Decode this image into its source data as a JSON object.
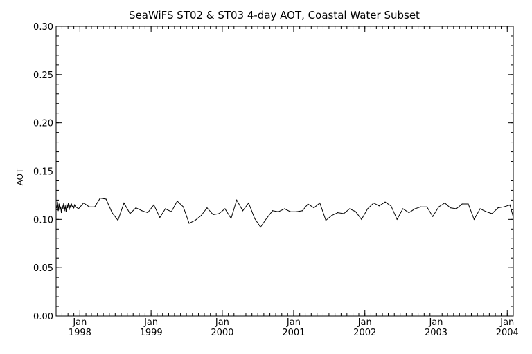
{
  "chart_data": {
    "type": "line",
    "title": "SeaWiFS ST02 & ST03 4-day AOT, Coastal Water Subset",
    "ylabel": "AOT",
    "xlabel": "",
    "ylim": [
      0.0,
      0.3
    ],
    "xlim": [
      "1997-09-01",
      "2004-02-01"
    ],
    "yticks": [
      "0.00",
      "0.05",
      "0.10",
      "0.15",
      "0.20",
      "0.25",
      "0.30"
    ],
    "xticks": [
      {
        "month": "Jan",
        "year": "1998",
        "date": "1998-01-01"
      },
      {
        "month": "Jan",
        "year": "1999",
        "date": "1999-01-01"
      },
      {
        "month": "Jan",
        "year": "2000",
        "date": "2000-01-01"
      },
      {
        "month": "Jan",
        "year": "2001",
        "date": "2001-01-01"
      },
      {
        "month": "Jan",
        "year": "2002",
        "date": "2002-01-01"
      },
      {
        "month": "Jan",
        "year": "2003",
        "date": "2003-01-01"
      },
      {
        "month": "Jan",
        "year": "2004",
        "date": "2004-01-01"
      }
    ],
    "grid": false,
    "series": [
      {
        "x": [
          "1997-09-04",
          "1997-09-08",
          "1997-09-12",
          "1997-09-16",
          "1997-09-20",
          "1997-09-24",
          "1997-09-28",
          "1997-10-02",
          "1997-10-06",
          "1997-10-10",
          "1997-10-14",
          "1997-10-18",
          "1997-10-22",
          "1997-10-26",
          "1997-10-30",
          "1997-11-03",
          "1997-11-07",
          "1997-11-11",
          "1997-11-15",
          "1997-11-19",
          "1997-11-23",
          "1997-11-27",
          "1997-12-01",
          "1997-12-05",
          "1997-12-10",
          "1997-12-25",
          "1998-01-20",
          "1998-02-18",
          "1998-03-18",
          "1998-04-15",
          "1998-05-15",
          "1998-06-15",
          "1998-07-15",
          "1998-08-15",
          "1998-09-15",
          "1998-10-15",
          "1998-11-15",
          "1998-12-15",
          "1999-01-15",
          "1999-02-15",
          "1999-03-15",
          "1999-04-15",
          "1999-05-15",
          "1999-06-15",
          "1999-07-15",
          "1999-08-15",
          "1999-09-15",
          "1999-10-15",
          "1999-11-15",
          "1999-12-15",
          "2000-01-15",
          "2000-02-15",
          "2000-03-15",
          "2000-04-15",
          "2000-05-15",
          "2000-06-15",
          "2000-07-15",
          "2000-08-15",
          "2000-09-15",
          "2000-10-15",
          "2000-11-15",
          "2000-12-15",
          "2001-01-15",
          "2001-02-15",
          "2001-03-15",
          "2001-04-15",
          "2001-05-15",
          "2001-06-15",
          "2001-07-15",
          "2001-08-15",
          "2001-09-15",
          "2001-10-15",
          "2001-11-15",
          "2001-12-15",
          "2002-01-15",
          "2002-02-15",
          "2002-03-15",
          "2002-04-15",
          "2002-05-15",
          "2002-06-15",
          "2002-07-15",
          "2002-08-15",
          "2002-09-15",
          "2002-10-15",
          "2002-11-15",
          "2002-12-15",
          "2003-01-15",
          "2003-02-15",
          "2003-03-15",
          "2003-04-15",
          "2003-05-15",
          "2003-06-15",
          "2003-07-15",
          "2003-08-15",
          "2003-09-15",
          "2003-10-15",
          "2003-11-15",
          "2003-12-15",
          "2004-01-15",
          "2004-01-31"
        ],
        "y": [
          0.112,
          0.118,
          0.109,
          0.116,
          0.11,
          0.113,
          0.107,
          0.115,
          0.111,
          0.117,
          0.109,
          0.114,
          0.108,
          0.116,
          0.112,
          0.117,
          0.11,
          0.115,
          0.112,
          0.116,
          0.113,
          0.114,
          0.112,
          0.115,
          0.113,
          0.111,
          0.117,
          0.113,
          0.113,
          0.122,
          0.121,
          0.107,
          0.099,
          0.117,
          0.106,
          0.112,
          0.109,
          0.107,
          0.115,
          0.102,
          0.111,
          0.108,
          0.119,
          0.113,
          0.096,
          0.099,
          0.104,
          0.112,
          0.105,
          0.106,
          0.111,
          0.101,
          0.12,
          0.109,
          0.117,
          0.101,
          0.092,
          0.101,
          0.109,
          0.108,
          0.111,
          0.108,
          0.108,
          0.109,
          0.116,
          0.112,
          0.117,
          0.099,
          0.104,
          0.107,
          0.106,
          0.111,
          0.108,
          0.1,
          0.111,
          0.117,
          0.114,
          0.118,
          0.114,
          0.1,
          0.111,
          0.107,
          0.111,
          0.113,
          0.113,
          0.103,
          0.113,
          0.117,
          0.112,
          0.111,
          0.116,
          0.116,
          0.1,
          0.111,
          0.108,
          0.106,
          0.112,
          0.113,
          0.115,
          0.103
        ]
      }
    ]
  }
}
